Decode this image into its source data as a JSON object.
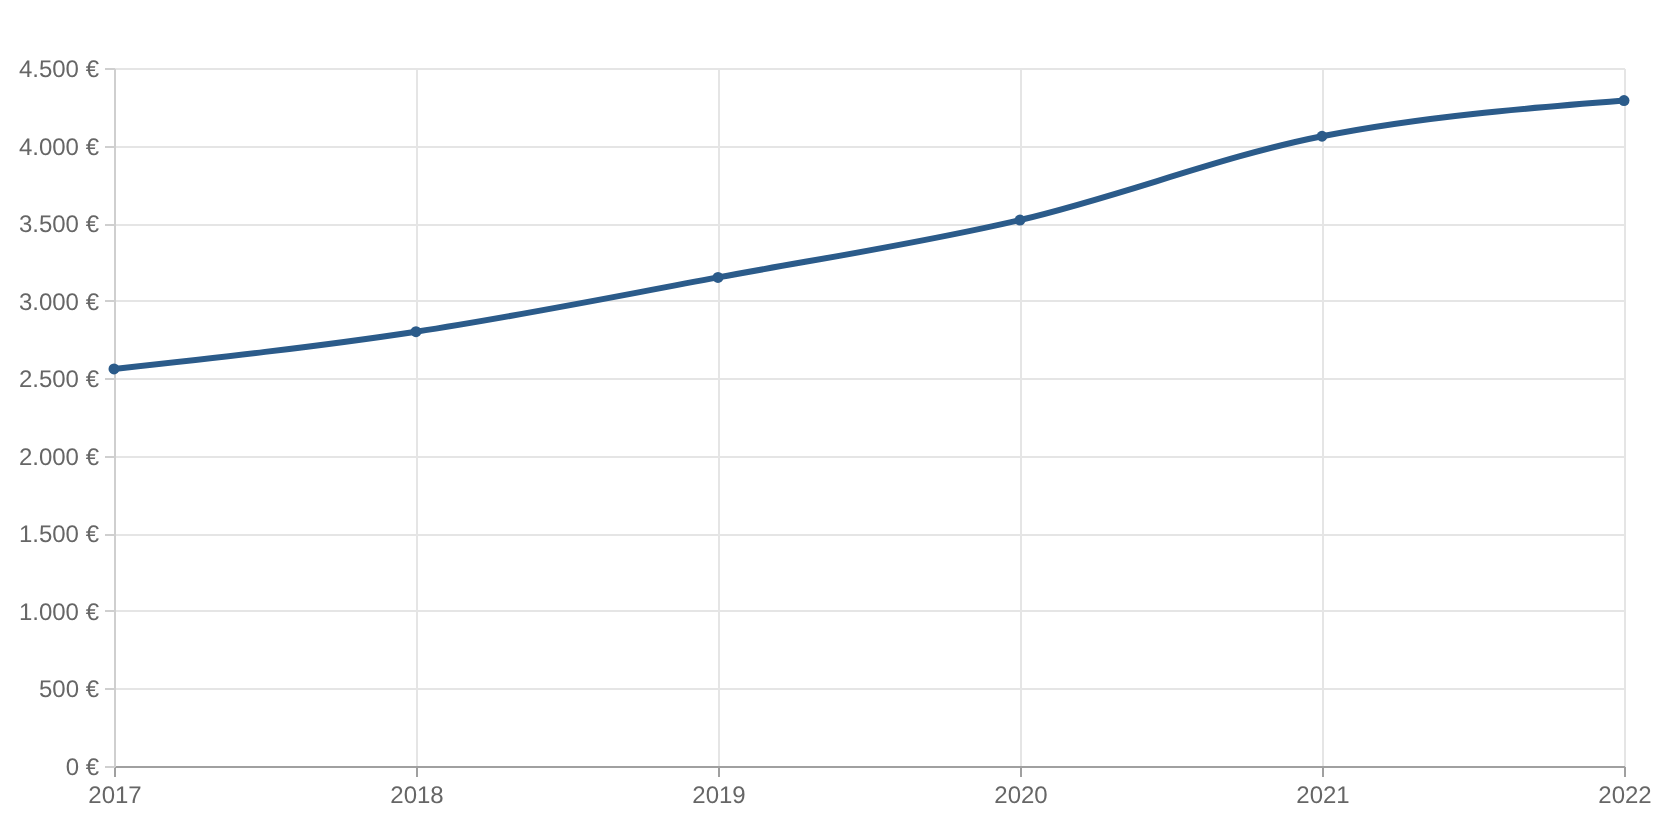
{
  "chart_data": {
    "type": "line",
    "categories": [
      "2017",
      "2018",
      "2019",
      "2020",
      "2021",
      "2022"
    ],
    "series": [
      {
        "color": "#2b5b8a",
        "values": [
          2560,
          2800,
          3150,
          3520,
          4060,
          4290
        ]
      }
    ],
    "ylim": [
      0,
      4500
    ],
    "yticks": [
      {
        "value": 0,
        "label": "0 €"
      },
      {
        "value": 500,
        "label": "500 €"
      },
      {
        "value": 1000,
        "label": "1.000 €"
      },
      {
        "value": 1500,
        "label": "1.500 €"
      },
      {
        "value": 2000,
        "label": "2.000 €"
      },
      {
        "value": 2500,
        "label": "2.500 €"
      },
      {
        "value": 3000,
        "label": "3.000 €"
      },
      {
        "value": 3500,
        "label": "3.500 €"
      },
      {
        "value": 4000,
        "label": "4.000 €"
      },
      {
        "value": 4500,
        "label": "4.500 €"
      }
    ],
    "grid": true,
    "marker": "circle",
    "line_style": "solid"
  }
}
